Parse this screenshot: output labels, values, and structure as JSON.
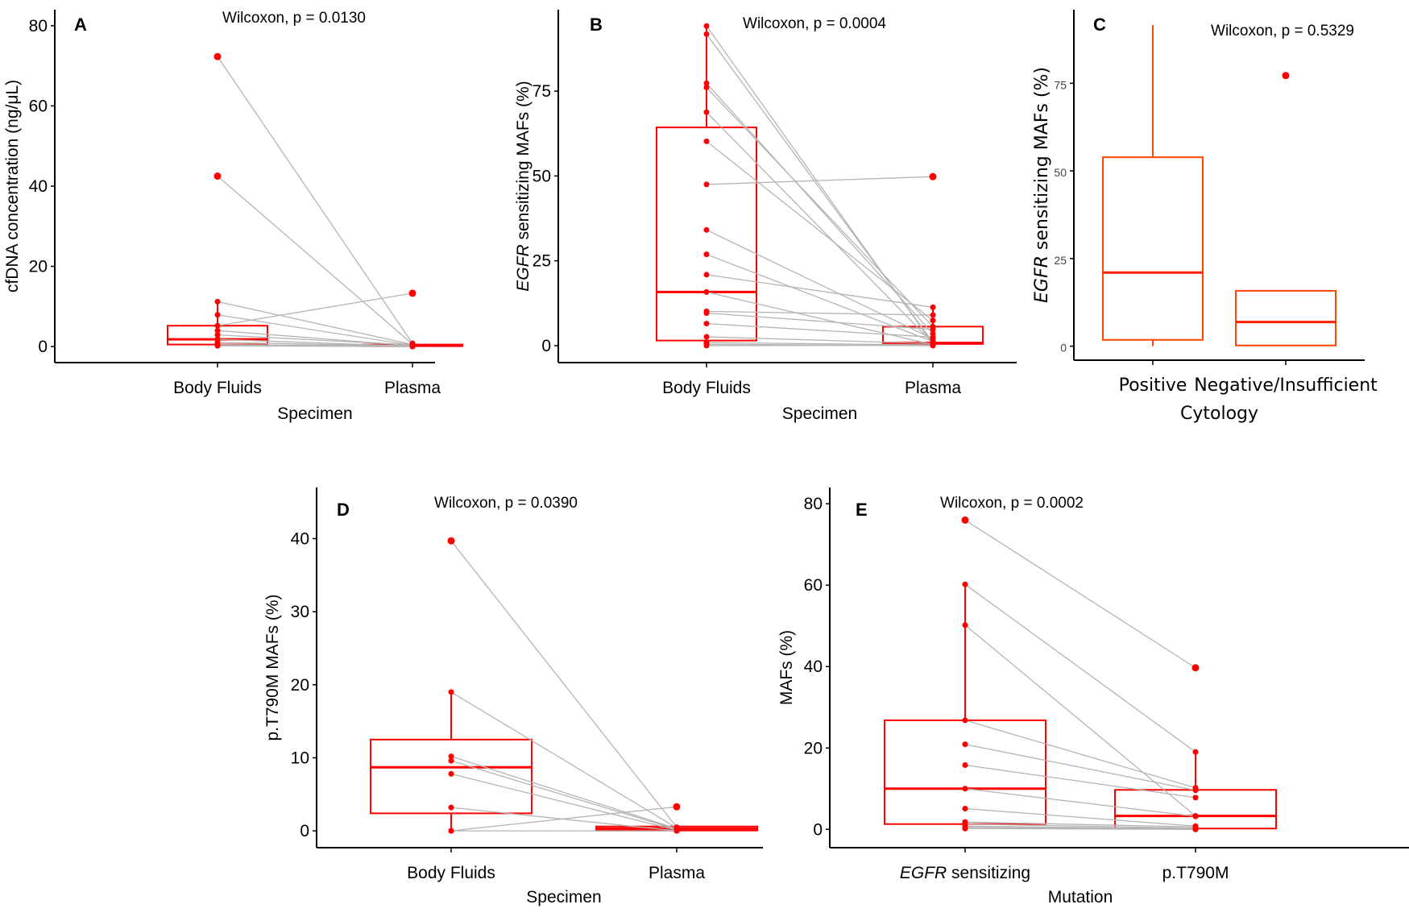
{
  "figure": {
    "colors": {
      "box": "#ff0000",
      "box_c": "#ff4500",
      "point": "#ff0000",
      "pair_line": "#b4b4b4",
      "axis": "#000000"
    }
  },
  "chart_data": [
    {
      "id": "A",
      "type": "boxplot-paired",
      "panel_label": "A",
      "annotation": "Wilcoxon, p = 0.0130",
      "title": "",
      "xlabel": "Specimen",
      "ylabel": "cfDNA concentration (ng/μL)",
      "ylabel_italic_prefix": "",
      "categories": [
        "Body Fluids",
        "Plasma"
      ],
      "ylim": [
        -4,
        84
      ],
      "yticks": [
        0,
        20,
        40,
        60,
        80
      ],
      "boxes": [
        {
          "category": "Body Fluids",
          "min": 0,
          "q1": 0.5,
          "median": 1.8,
          "q3": 5.2,
          "max": 11.2
        },
        {
          "category": "Plasma",
          "min": 0,
          "q1": 0.1,
          "median": 0.3,
          "q3": 0.5,
          "max": 0.8
        }
      ],
      "outliers": [
        {
          "category": "Body Fluids",
          "value": 72.3
        },
        {
          "category": "Body Fluids",
          "value": 42.5
        },
        {
          "category": "Plasma",
          "value": 13.3
        }
      ],
      "pairs": [
        [
          72.3,
          0.8
        ],
        [
          42.5,
          0.6
        ],
        [
          11.2,
          0.5
        ],
        [
          7.9,
          0.3
        ],
        [
          5.2,
          13.3
        ],
        [
          4.0,
          0.2
        ],
        [
          2.9,
          0.4
        ],
        [
          1.8,
          0.1
        ],
        [
          1.0,
          0.2
        ],
        [
          0.5,
          0.1
        ],
        [
          0.2,
          0.0
        ]
      ]
    },
    {
      "id": "B",
      "type": "boxplot-paired",
      "panel_label": "B",
      "annotation": "Wilcoxon, p = 0.0004",
      "title": "",
      "xlabel": "Specimen",
      "ylabel": " sensitizing MAFs (%)",
      "ylabel_italic_prefix": "EGFR",
      "categories": [
        "Body Fluids",
        "Plasma"
      ],
      "ylim": [
        -5,
        99
      ],
      "yticks": [
        0,
        25,
        50,
        75
      ],
      "boxes": [
        {
          "category": "Body Fluids",
          "min": 0,
          "q1": 1.5,
          "median": 15.8,
          "q3": 64.3,
          "max": 94.2
        },
        {
          "category": "Plasma",
          "min": 0,
          "q1": 0.5,
          "median": 0.8,
          "q3": 5.6,
          "max": 11.3
        }
      ],
      "outliers": [
        {
          "category": "Plasma",
          "value": 49.8
        }
      ],
      "pairs": [
        [
          94.2,
          0.5
        ],
        [
          91.8,
          1.0
        ],
        [
          77.3,
          3.5
        ],
        [
          76.1,
          5.6
        ],
        [
          68.8,
          0.8
        ],
        [
          60.2,
          7.4
        ],
        [
          47.5,
          49.8
        ],
        [
          34.1,
          2.0
        ],
        [
          26.9,
          1.2
        ],
        [
          20.9,
          11.3
        ],
        [
          15.8,
          0.3
        ],
        [
          10.1,
          9.0
        ],
        [
          9.6,
          4.8
        ],
        [
          6.5,
          2.5
        ],
        [
          2.6,
          0.6
        ],
        [
          0.9,
          0.2
        ],
        [
          0.4,
          0.0
        ],
        [
          0.0,
          0.1
        ]
      ]
    },
    {
      "id": "C",
      "type": "boxplot",
      "panel_label": "C",
      "annotation": "Wilcoxon, p = 0.5329",
      "title": "",
      "xlabel": "Cytology",
      "ylabel": " sensitizing MAFs (%)",
      "ylabel_italic_prefix": "EGFR",
      "categories": [
        "Positive",
        "Negative/Insufficient"
      ],
      "ylim": [
        -4,
        96
      ],
      "yticks": [
        0,
        25,
        50,
        75
      ],
      "boxes": [
        {
          "category": "Positive",
          "min": 0,
          "q1": 1.8,
          "median": 21.0,
          "q3": 53.9,
          "max": 91.6
        },
        {
          "category": "Negative/Insufficient",
          "min": 0.2,
          "q1": 0.2,
          "median": 6.9,
          "q3": 15.8,
          "max": 15.8
        }
      ],
      "outliers": [
        {
          "category": "Negative/Insufficient",
          "value": 77.2
        }
      ],
      "pairs": []
    },
    {
      "id": "D",
      "type": "boxplot-paired",
      "panel_label": "D",
      "annotation": "Wilcoxon, p = 0.0390",
      "title": "",
      "xlabel": "Specimen",
      "ylabel": "p.T790M MAFs (%)",
      "ylabel_italic_prefix": "",
      "categories": [
        "Body Fluids",
        "Plasma"
      ],
      "ylim": [
        -2.3,
        47
      ],
      "yticks": [
        0,
        10,
        20,
        30,
        40
      ],
      "boxes": [
        {
          "category": "Body Fluids",
          "min": 0,
          "q1": 2.4,
          "median": 8.7,
          "q3": 12.5,
          "max": 19.0
        },
        {
          "category": "Plasma",
          "min": 0,
          "q1": 0.05,
          "median": 0.3,
          "q3": 0.6,
          "max": 0.8
        }
      ],
      "outliers": [
        {
          "category": "Body Fluids",
          "value": 39.7
        },
        {
          "category": "Plasma",
          "value": 3.3
        }
      ],
      "pairs": [
        [
          39.7,
          0.5
        ],
        [
          19.0,
          0.4
        ],
        [
          10.2,
          0.3
        ],
        [
          9.6,
          0.2
        ],
        [
          7.8,
          0.1
        ],
        [
          3.2,
          0.0
        ],
        [
          0.0,
          3.3
        ],
        [
          0.0,
          0.0
        ]
      ]
    },
    {
      "id": "E",
      "type": "boxplot-paired",
      "panel_label": "E",
      "annotation": "Wilcoxon, p = 0.0002",
      "title": "",
      "xlabel": "Mutation",
      "ylabel": "MAFs (%)",
      "ylabel_italic_prefix": "",
      "categories": [
        " sensitizing",
        "p.T790M"
      ],
      "category_italic_prefix": [
        "EGFR",
        ""
      ],
      "ylim": [
        -4.5,
        84
      ],
      "yticks": [
        0,
        20,
        40,
        60,
        80
      ],
      "boxes": [
        {
          "category": "EGFR sensitizing",
          "min": 0,
          "q1": 1.3,
          "median": 10.0,
          "q3": 26.8,
          "max": 60.2
        },
        {
          "category": "p.T790M",
          "min": 0,
          "q1": 0.2,
          "median": 3.3,
          "q3": 9.7,
          "max": 19.0
        }
      ],
      "outliers": [
        {
          "category": "EGFR sensitizing",
          "value": 76.0
        },
        {
          "category": "p.T790M",
          "value": 39.7
        }
      ],
      "pairs": [
        [
          76.0,
          39.7
        ],
        [
          60.2,
          19.0
        ],
        [
          50.2,
          3.3
        ],
        [
          26.8,
          10.2
        ],
        [
          20.9,
          9.6
        ],
        [
          15.8,
          7.8
        ],
        [
          10.0,
          3.2
        ],
        [
          5.1,
          0.8
        ],
        [
          1.8,
          0.6
        ],
        [
          1.3,
          0.3
        ],
        [
          0.8,
          0.1
        ],
        [
          0.5,
          0.0
        ],
        [
          0.2,
          0.0
        ]
      ]
    }
  ]
}
